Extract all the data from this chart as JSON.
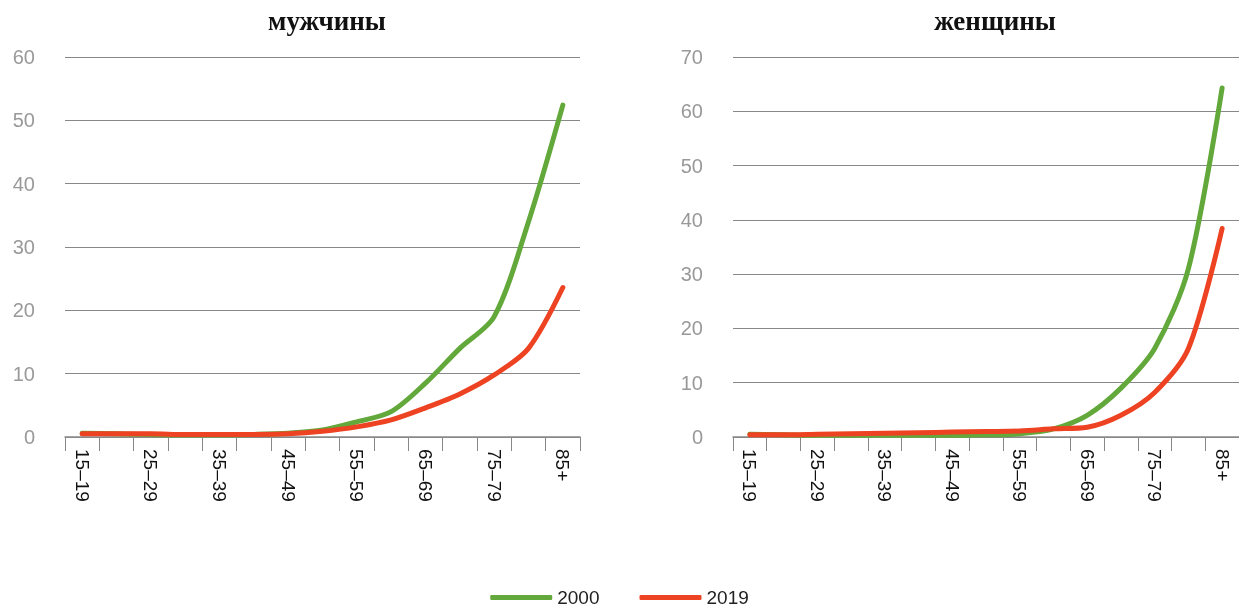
{
  "chart_data": [
    {
      "type": "line",
      "title": "мужчины",
      "categories": [
        "15–19",
        null,
        "25–29",
        null,
        "35–39",
        null,
        "45–49",
        null,
        "55–59",
        null,
        "65–69",
        null,
        "75–79",
        null,
        "85+"
      ],
      "series": [
        {
          "name": "2000",
          "color": "#62a83a",
          "values": [
            0.6,
            0.5,
            0.4,
            0.3,
            0.3,
            0.4,
            0.6,
            1.1,
            2.4,
            4.0,
            8.5,
            14,
            19,
            34,
            52.4
          ]
        },
        {
          "name": "2019",
          "color": "#ee4322",
          "values": [
            0.5,
            0.5,
            0.5,
            0.4,
            0.4,
            0.4,
            0.5,
            0.9,
            1.6,
            2.7,
            4.6,
            6.8,
            9.8,
            14,
            23.6
          ]
        }
      ],
      "ylim": [
        0,
        60
      ],
      "yticks": [
        0,
        10,
        20,
        30,
        40,
        50,
        60
      ],
      "grid": "y",
      "legend": "bottom",
      "marker": "none",
      "line_style": "solid"
    },
    {
      "type": "line",
      "title": "женщины",
      "categories": [
        "15–19",
        null,
        "25–29",
        null,
        "35–39",
        null,
        "45–49",
        null,
        "55–59",
        null,
        "65–69",
        null,
        "75–79",
        null,
        "85+"
      ],
      "series": [
        {
          "name": "2000",
          "color": "#62a83a",
          "values": [
            0.5,
            0.4,
            0.3,
            0.3,
            0.3,
            0.3,
            0.3,
            0.4,
            0.6,
            1.5,
            4,
            9,
            16.3,
            31,
            64.3
          ]
        },
        {
          "name": "2019",
          "color": "#ee4322",
          "values": [
            0.4,
            0.4,
            0.5,
            0.6,
            0.7,
            0.8,
            0.9,
            1.0,
            1.1,
            1.5,
            1.8,
            4,
            8.2,
            16.3,
            38.4
          ]
        }
      ],
      "ylim": [
        0,
        70
      ],
      "yticks": [
        0,
        10,
        20,
        30,
        40,
        50,
        60,
        70
      ],
      "grid": "y",
      "marker": "none",
      "line_style": "solid"
    }
  ]
}
